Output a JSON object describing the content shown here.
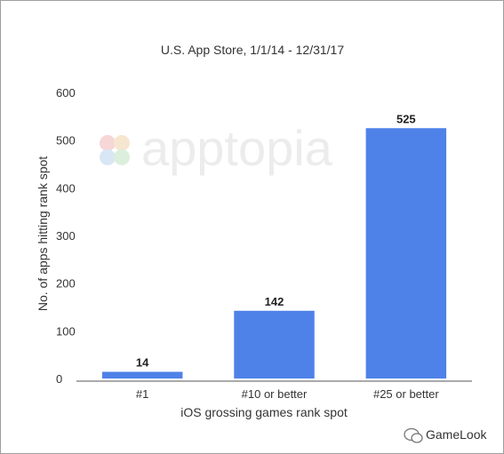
{
  "chart_data": {
    "type": "bar",
    "title": "U.S. App Store, 1/1/14 - 12/31/17",
    "xlabel": "iOS grossing games rank spot",
    "ylabel": "No. of apps hitting rank spot",
    "categories": [
      "#1",
      "#10 or better",
      "#25 or better"
    ],
    "values": [
      14,
      142,
      525
    ],
    "data_labels": [
      "14",
      "142",
      "525"
    ],
    "y_ticks": [
      "0",
      "100",
      "200",
      "300",
      "400",
      "500",
      "600"
    ],
    "ylim": [
      0,
      600
    ],
    "grid": false,
    "bar_color": "#4f82e8"
  },
  "watermark": {
    "text": "apptopia"
  },
  "footer": {
    "brand": "GameLook"
  }
}
